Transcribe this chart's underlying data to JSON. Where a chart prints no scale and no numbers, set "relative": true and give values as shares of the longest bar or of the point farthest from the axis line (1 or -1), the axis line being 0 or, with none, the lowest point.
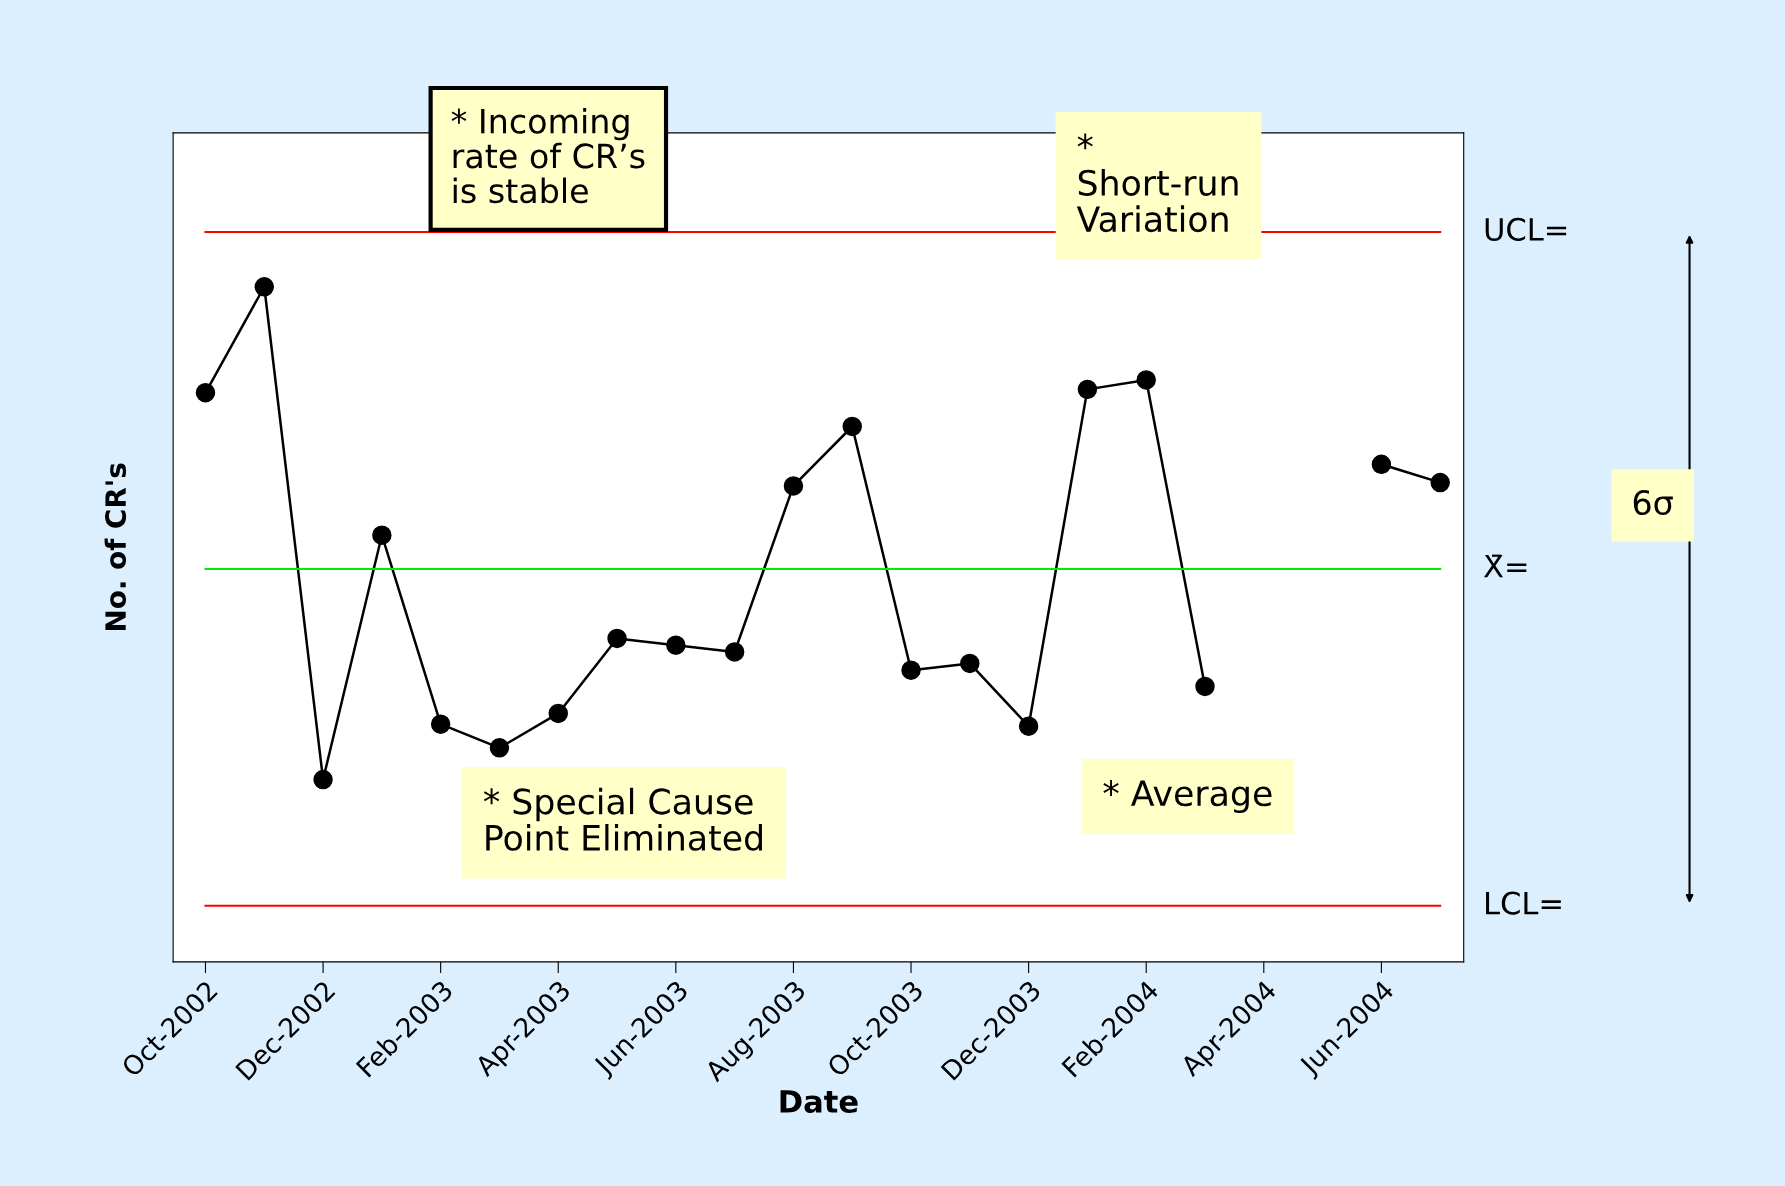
{
  "chart_data": {
    "type": "line",
    "relative": true,
    "xlabel": "Date",
    "ylabel": "No. of CR's",
    "categories": [
      "Oct-2002",
      null,
      "Dec-2002",
      null,
      "Feb-2003",
      null,
      "Apr-2003",
      null,
      "Jun-2003",
      null,
      "Aug-2003",
      null,
      "Oct-2003",
      null,
      "Dec-2003",
      null,
      "Feb-2004",
      null,
      "Apr-2004",
      null,
      "Jun-2004",
      null
    ],
    "series": [
      {
        "color": "#000000",
        "values": [
          0.843,
          1,
          0.27,
          0.632,
          0.352,
          0.317,
          0.368,
          0.479,
          0.469,
          0.459,
          0.705,
          0.793,
          0.432,
          0.442,
          0.349,
          0.848,
          0.862,
          0.408,
          null,
          null,
          0.737,
          0.71
        ]
      }
    ],
    "marker": "circle",
    "line_style": "solid",
    "grid": false,
    "tick_labels": "x",
    "ref_lines": [
      {
        "axis": "y",
        "value": 1.081,
        "label": "UCL=",
        "color": "#ff0000"
      },
      {
        "axis": "y",
        "value": 0.582,
        "label": "X̄=",
        "color": "#00ee00"
      },
      {
        "axis": "y",
        "value": 0.083,
        "label": "LCL=",
        "color": "#ff0000"
      }
    ],
    "annotations": [
      "* Incoming rate of CR’s is stable",
      "* Short-run Variation",
      "* Special Cause Point Eliminated",
      "* Average",
      "6σ"
    ]
  }
}
